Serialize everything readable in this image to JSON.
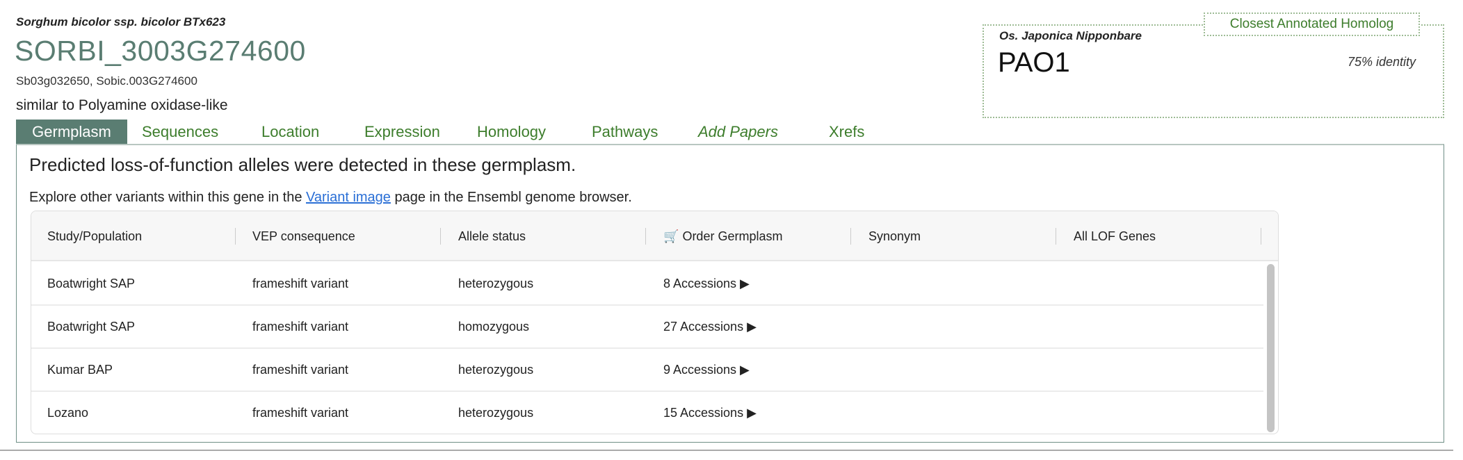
{
  "gene": {
    "species": "Sorghum bicolor ssp. bicolor BTx623",
    "id": "SORBI_3003G274600",
    "synonyms": "Sb03g032650, Sobic.003G274600",
    "description": "similar to Polyamine oxidase-like"
  },
  "tabs": [
    {
      "label": "Germplasm",
      "active": true
    },
    {
      "label": "Sequences"
    },
    {
      "label": "Location"
    },
    {
      "label": "Expression"
    },
    {
      "label": "Homology"
    },
    {
      "label": "Pathways"
    },
    {
      "label": "Add Papers"
    },
    {
      "label": "Xrefs"
    }
  ],
  "homolog": {
    "label": "Closest Annotated Homolog",
    "species": "Os. Japonica Nipponbare",
    "name": "PAO1",
    "identity": "75% identity"
  },
  "germplasm": {
    "intro": "Predicted loss-of-function alleles were detected in these germplasm.",
    "explore_pre": "Explore other variants within this gene in the ",
    "explore_link": "Variant image",
    "explore_post": " page in the Ensembl genome browser.",
    "columns": [
      "Study/Population",
      "VEP consequence",
      "Allele status",
      "Order Germplasm",
      "Synonym",
      "All LOF Genes"
    ],
    "order_icon": "cart-icon",
    "rows": [
      [
        "Boatwright SAP",
        "frameshift variant",
        "heterozygous",
        "8 Accessions ▶",
        "",
        ""
      ],
      [
        "Boatwright SAP",
        "frameshift variant",
        "homozygous",
        "27 Accessions ▶",
        "",
        ""
      ],
      [
        "Kumar BAP",
        "frameshift variant",
        "heterozygous",
        "9 Accessions ▶",
        "",
        ""
      ],
      [
        "Lozano",
        "frameshift variant",
        "heterozygous",
        "15 Accessions ▶",
        "",
        ""
      ]
    ]
  },
  "colors": {
    "brand": "#5a7d72",
    "tab_text": "#3d7d2c",
    "link": "#2a6fd6"
  }
}
